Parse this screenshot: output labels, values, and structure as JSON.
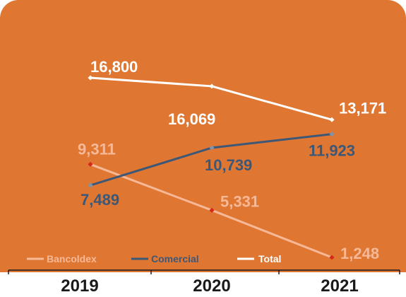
{
  "colors": {
    "background": "#DF7733",
    "bancoldex": "#F6B896",
    "comercial": "#3D5776",
    "total": "#FFFFFF",
    "marker_bancoldex": "#D62818",
    "axis": "#1A1A1A"
  },
  "chart_data": {
    "type": "line",
    "title": "",
    "xlabel": "",
    "ylabel": "",
    "categories": [
      "2019",
      "2020",
      "2021"
    ],
    "ylim": [
      0,
      17500
    ],
    "grid": false,
    "legend_position": "bottom-left",
    "series": [
      {
        "name": "Bancoldex",
        "values": [
          9311,
          5331,
          1248
        ],
        "labels": [
          "9,311",
          "5,331",
          "1,248"
        ]
      },
      {
        "name": "Comercial",
        "values": [
          7489,
          10739,
          11923
        ],
        "labels": [
          "7,489",
          "10,739",
          "11,923"
        ]
      },
      {
        "name": "Total",
        "values": [
          16800,
          16069,
          13171
        ],
        "labels": [
          "16,800",
          "16,069",
          "13,171"
        ]
      }
    ]
  }
}
